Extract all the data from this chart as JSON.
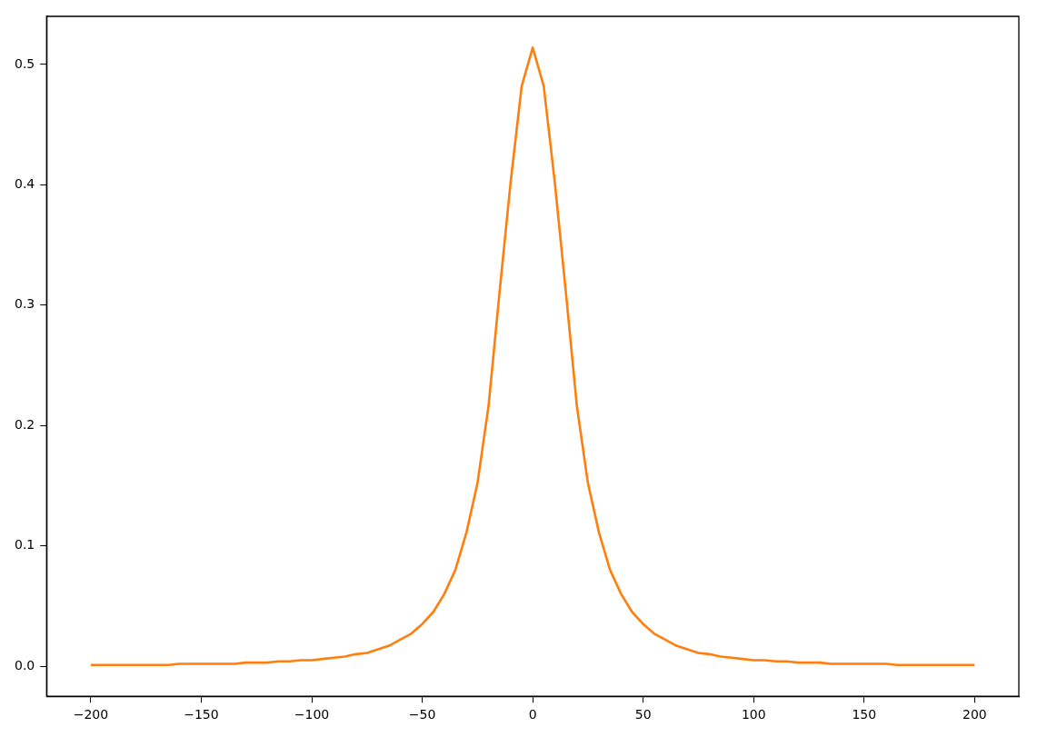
{
  "chart_data": {
    "type": "line",
    "x": [
      -200,
      -195,
      -190,
      -185,
      -180,
      -175,
      -170,
      -165,
      -160,
      -155,
      -150,
      -145,
      -140,
      -135,
      -130,
      -125,
      -120,
      -115,
      -110,
      -105,
      -100,
      -95,
      -90,
      -85,
      -80,
      -75,
      -70,
      -65,
      -60,
      -55,
      -50,
      -45,
      -40,
      -35,
      -30,
      -25,
      -20,
      -15,
      -10,
      -5,
      0,
      5,
      10,
      15,
      20,
      25,
      30,
      35,
      40,
      45,
      50,
      55,
      60,
      65,
      70,
      75,
      80,
      85,
      90,
      95,
      100,
      105,
      110,
      115,
      120,
      125,
      130,
      135,
      140,
      145,
      150,
      155,
      160,
      165,
      170,
      175,
      180,
      185,
      190,
      195,
      200
    ],
    "series": [
      {
        "color": "#ff7f0e",
        "values": [
          0.001,
          0.001,
          0.001,
          0.001,
          0.001,
          0.001,
          0.001,
          0.001,
          0.002,
          0.002,
          0.002,
          0.002,
          0.002,
          0.002,
          0.003,
          0.003,
          0.003,
          0.004,
          0.004,
          0.005,
          0.005,
          0.006,
          0.007,
          0.008,
          0.01,
          0.011,
          0.014,
          0.017,
          0.022,
          0.027,
          0.035,
          0.045,
          0.06,
          0.08,
          0.111,
          0.152,
          0.216,
          0.311,
          0.402,
          0.482,
          0.514,
          0.482,
          0.402,
          0.311,
          0.216,
          0.152,
          0.111,
          0.08,
          0.06,
          0.045,
          0.035,
          0.027,
          0.022,
          0.017,
          0.014,
          0.011,
          0.01,
          0.008,
          0.007,
          0.006,
          0.005,
          0.005,
          0.004,
          0.004,
          0.003,
          0.003,
          0.003,
          0.002,
          0.002,
          0.002,
          0.002,
          0.002,
          0.002,
          0.001,
          0.001,
          0.001,
          0.001,
          0.001,
          0.001,
          0.001,
          0.001
        ]
      }
    ],
    "xlim": [
      -220,
      220
    ],
    "xticks": [
      {
        "value": -200,
        "label": "−200"
      },
      {
        "value": -150,
        "label": "−150"
      },
      {
        "value": -100,
        "label": "−100"
      },
      {
        "value": -50,
        "label": "−50"
      },
      0,
      50,
      100,
      150,
      200
    ],
    "ylim": [
      -0.025,
      0.54
    ],
    "yticks": [
      {
        "value": 0,
        "label": "0.0"
      },
      0.1,
      0.2,
      0.3,
      0.4,
      0.5
    ],
    "grid": false,
    "legend": false,
    "marker": "none",
    "line_style": "solid"
  }
}
